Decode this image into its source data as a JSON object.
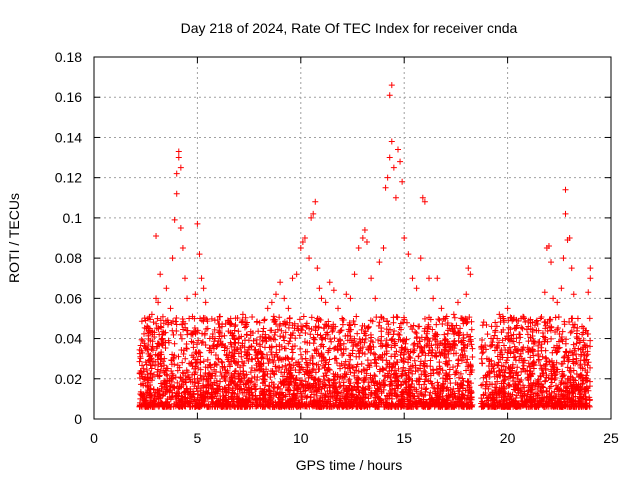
{
  "chart_data": {
    "type": "scatter",
    "title": "Day 218 of 2024, Rate Of TEC Index for receiver cnda",
    "xlabel": "GPS time / hours",
    "ylabel": "ROTI / TECUs",
    "xlim": [
      0,
      25
    ],
    "ylim": [
      0,
      0.18
    ],
    "x_ticks": [
      "0",
      "5",
      "10",
      "15",
      "20",
      "25"
    ],
    "y_ticks": [
      "0",
      "0.02",
      "0.04",
      "0.06",
      "0.08",
      "0.1",
      "0.12",
      "0.14",
      "0.16",
      "0.18"
    ],
    "grid": true,
    "marker": "+",
    "color": "#ff0000",
    "series": [
      {
        "name": "ROTI",
        "points": [
          [
            2.3,
            0.012
          ],
          [
            2.4,
            0.025
          ],
          [
            2.5,
            0.035
          ],
          [
            2.6,
            0.018
          ],
          [
            2.7,
            0.045
          ],
          [
            2.8,
            0.052
          ],
          [
            2.9,
            0.022
          ],
          [
            3.0,
            0.06
          ],
          [
            3.0,
            0.091
          ],
          [
            3.1,
            0.058
          ],
          [
            3.2,
            0.072
          ],
          [
            3.3,
            0.04
          ],
          [
            3.4,
            0.03
          ],
          [
            3.5,
            0.065
          ],
          [
            3.6,
            0.048
          ],
          [
            3.7,
            0.055
          ],
          [
            3.8,
            0.08
          ],
          [
            3.9,
            0.099
          ],
          [
            4.0,
            0.112
          ],
          [
            4.0,
            0.122
          ],
          [
            4.1,
            0.133
          ],
          [
            4.1,
            0.13
          ],
          [
            4.2,
            0.125
          ],
          [
            4.2,
            0.095
          ],
          [
            4.3,
            0.085
          ],
          [
            4.4,
            0.07
          ],
          [
            4.5,
            0.06
          ],
          [
            4.6,
            0.05
          ],
          [
            4.7,
            0.042
          ],
          [
            4.8,
            0.038
          ],
          [
            4.9,
            0.062
          ],
          [
            5.0,
            0.097
          ],
          [
            5.1,
            0.082
          ],
          [
            5.2,
            0.07
          ],
          [
            5.3,
            0.065
          ],
          [
            5.4,
            0.058
          ],
          [
            5.5,
            0.045
          ],
          [
            5.6,
            0.04
          ],
          [
            5.8,
            0.035
          ],
          [
            6.0,
            0.03
          ],
          [
            6.2,
            0.028
          ],
          [
            6.4,
            0.032
          ],
          [
            6.6,
            0.038
          ],
          [
            6.8,
            0.044
          ],
          [
            7.0,
            0.04
          ],
          [
            7.2,
            0.052
          ],
          [
            7.4,
            0.048
          ],
          [
            7.6,
            0.036
          ],
          [
            7.8,
            0.03
          ],
          [
            8.0,
            0.026
          ],
          [
            8.2,
            0.045
          ],
          [
            8.4,
            0.055
          ],
          [
            8.6,
            0.058
          ],
          [
            8.8,
            0.062
          ],
          [
            9.0,
            0.068
          ],
          [
            9.2,
            0.06
          ],
          [
            9.4,
            0.055
          ],
          [
            9.6,
            0.07
          ],
          [
            9.8,
            0.072
          ],
          [
            10.0,
            0.085
          ],
          [
            10.1,
            0.088
          ],
          [
            10.2,
            0.09
          ],
          [
            10.4,
            0.08
          ],
          [
            10.5,
            0.1
          ],
          [
            10.6,
            0.102
          ],
          [
            10.7,
            0.108
          ],
          [
            10.8,
            0.075
          ],
          [
            10.9,
            0.065
          ],
          [
            11.0,
            0.06
          ],
          [
            11.2,
            0.058
          ],
          [
            11.4,
            0.068
          ],
          [
            11.6,
            0.064
          ],
          [
            11.8,
            0.055
          ],
          [
            12.0,
            0.05
          ],
          [
            12.2,
            0.062
          ],
          [
            12.4,
            0.06
          ],
          [
            12.6,
            0.072
          ],
          [
            12.8,
            0.085
          ],
          [
            13.0,
            0.09
          ],
          [
            13.1,
            0.094
          ],
          [
            13.2,
            0.088
          ],
          [
            13.4,
            0.07
          ],
          [
            13.6,
            0.06
          ],
          [
            13.8,
            0.078
          ],
          [
            14.0,
            0.085
          ],
          [
            14.1,
            0.115
          ],
          [
            14.2,
            0.12
          ],
          [
            14.3,
            0.13
          ],
          [
            14.3,
            0.161
          ],
          [
            14.4,
            0.166
          ],
          [
            14.4,
            0.138
          ],
          [
            14.5,
            0.125
          ],
          [
            14.6,
            0.11
          ],
          [
            14.7,
            0.134
          ],
          [
            14.8,
            0.128
          ],
          [
            14.9,
            0.118
          ],
          [
            15.0,
            0.09
          ],
          [
            15.2,
            0.082
          ],
          [
            15.4,
            0.07
          ],
          [
            15.6,
            0.065
          ],
          [
            15.8,
            0.08
          ],
          [
            15.9,
            0.11
          ],
          [
            16.0,
            0.108
          ],
          [
            16.2,
            0.07
          ],
          [
            16.4,
            0.06
          ],
          [
            16.6,
            0.07
          ],
          [
            16.8,
            0.055
          ],
          [
            17.0,
            0.05
          ],
          [
            17.2,
            0.045
          ],
          [
            17.4,
            0.052
          ],
          [
            17.6,
            0.058
          ],
          [
            17.8,
            0.05
          ],
          [
            18.0,
            0.062
          ],
          [
            18.1,
            0.075
          ],
          [
            18.2,
            0.072
          ],
          [
            18.3,
            0.035
          ],
          [
            19.0,
            0.03
          ],
          [
            19.2,
            0.04
          ],
          [
            19.4,
            0.048
          ],
          [
            19.6,
            0.052
          ],
          [
            19.8,
            0.05
          ],
          [
            20.0,
            0.055
          ],
          [
            20.2,
            0.04
          ],
          [
            20.4,
            0.045
          ],
          [
            20.6,
            0.042
          ],
          [
            20.8,
            0.05
          ],
          [
            21.0,
            0.046
          ],
          [
            21.2,
            0.048
          ],
          [
            21.4,
            0.044
          ],
          [
            21.6,
            0.05
          ],
          [
            21.8,
            0.063
          ],
          [
            21.9,
            0.085
          ],
          [
            22.0,
            0.086
          ],
          [
            22.1,
            0.078
          ],
          [
            22.2,
            0.06
          ],
          [
            22.4,
            0.058
          ],
          [
            22.6,
            0.065
          ],
          [
            22.7,
            0.08
          ],
          [
            22.8,
            0.114
          ],
          [
            22.8,
            0.102
          ],
          [
            22.9,
            0.089
          ],
          [
            23.0,
            0.09
          ],
          [
            23.1,
            0.075
          ],
          [
            23.2,
            0.062
          ],
          [
            23.4,
            0.05
          ],
          [
            23.6,
            0.046
          ],
          [
            23.8,
            0.044
          ],
          [
            23.9,
            0.063
          ],
          [
            24.0,
            0.075
          ],
          [
            24.0,
            0.07
          ]
        ]
      }
    ]
  }
}
